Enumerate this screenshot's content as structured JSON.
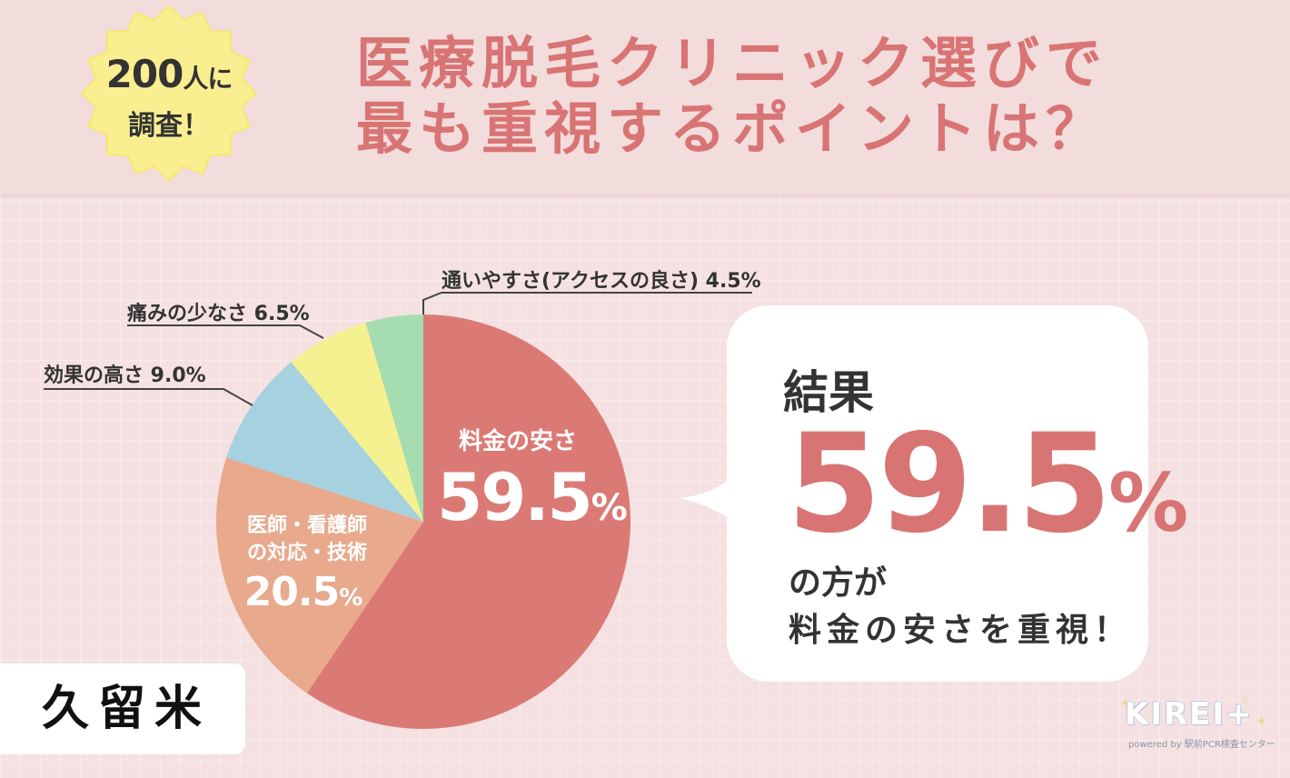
{
  "badge": {
    "count": "200",
    "line1_suffix": "人に",
    "line2": "調査！"
  },
  "title": {
    "line1": "医療脱毛クリニック選びで",
    "line2": "最も重視するポイントは？"
  },
  "chart_data": {
    "type": "pie",
    "slices": [
      {
        "label": "料金の安さ",
        "value": 59.5,
        "color": "#db7a75"
      },
      {
        "label": "医師・看護師の対応・技術",
        "value": 20.5,
        "color": "#e8a98c"
      },
      {
        "label": "効果の高さ",
        "value": 9.0,
        "color": "#a6d1df"
      },
      {
        "label": "痛みの少なさ",
        "value": 6.5,
        "color": "#f6f190"
      },
      {
        "label": "通いやすさ(アクセスの良さ)",
        "value": 4.5,
        "color": "#a5dcb0"
      }
    ],
    "inner_labels": {
      "main_label": "料金の安さ",
      "main_value": "59.5",
      "second_label_line1": "医師・看護師",
      "second_label_line2": "の対応・技術",
      "second_value": "20.5",
      "percent_sign": "%"
    },
    "callouts": [
      "通いやすさ(アクセスの良さ) 4.5%",
      "痛みの少なさ 6.5%",
      "効果の高さ 9.0%"
    ]
  },
  "result": {
    "label": "結果",
    "value": "59.5",
    "percent_sign": "%",
    "line1": "の方が",
    "line2": "料金の安さを重視！"
  },
  "city": "久留米",
  "logo": {
    "name": "KIREI+",
    "sub": "powered by 駅前PCR検査センター"
  }
}
